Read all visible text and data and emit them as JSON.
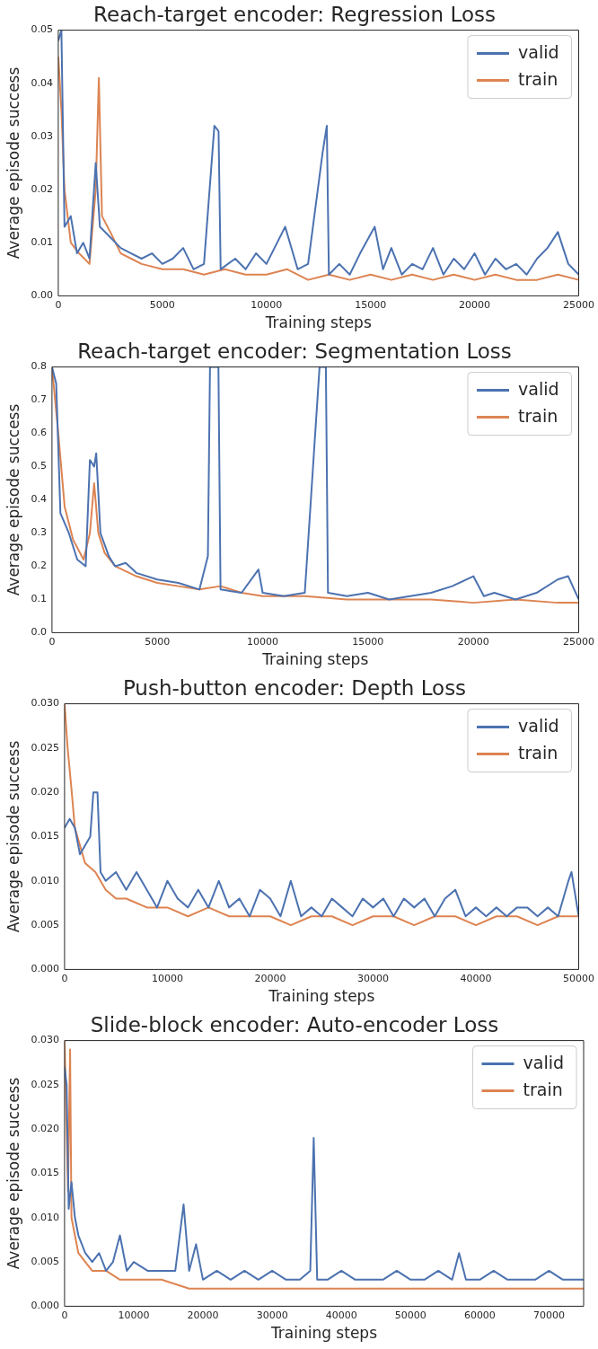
{
  "chart_data": [
    {
      "type": "line",
      "title": "Reach-target encoder: Regression Loss",
      "xlabel": "Training steps",
      "ylabel": "Average episode success",
      "legend": "top right",
      "grid": false,
      "marker": "none",
      "line_style": "solid",
      "xlim": [
        0,
        25000
      ],
      "xticks": [
        0,
        5000,
        10000,
        15000,
        20000,
        25000
      ],
      "ylim": [
        0,
        0.05
      ],
      "yticks": [
        {
          "value": 0,
          "label": "0.00"
        },
        {
          "value": 0.01,
          "label": "0.01"
        },
        {
          "value": 0.02,
          "label": "0.02"
        },
        {
          "value": 0.03,
          "label": "0.03"
        },
        {
          "value": 0.04,
          "label": "0.04"
        },
        {
          "value": 0.05,
          "label": "0.05"
        }
      ],
      "series": [
        {
          "name": "valid",
          "color": "#4c72b0",
          "x": [
            0,
            150,
            300,
            600,
            900,
            1200,
            1500,
            1800,
            2000,
            2500,
            3000,
            3500,
            4000,
            4500,
            5000,
            5500,
            6000,
            6500,
            7000,
            7500,
            7700,
            7800,
            8500,
            9000,
            9500,
            10000,
            10900,
            11500,
            12000,
            12700,
            12900,
            13000,
            13500,
            14000,
            14500,
            15200,
            15600,
            16000,
            16500,
            17000,
            17500,
            18000,
            18500,
            19000,
            19500,
            20000,
            20500,
            21000,
            21500,
            22000,
            22500,
            23000,
            23500,
            24000,
            24500,
            25000
          ],
          "values": [
            0.048,
            0.05,
            0.013,
            0.015,
            0.008,
            0.01,
            0.007,
            0.025,
            0.013,
            0.011,
            0.009,
            0.008,
            0.007,
            0.008,
            0.006,
            0.007,
            0.009,
            0.005,
            0.006,
            0.032,
            0.031,
            0.005,
            0.007,
            0.005,
            0.008,
            0.006,
            0.013,
            0.005,
            0.006,
            0.027,
            0.032,
            0.004,
            0.006,
            0.004,
            0.008,
            0.013,
            0.005,
            0.009,
            0.004,
            0.006,
            0.005,
            0.009,
            0.004,
            0.007,
            0.005,
            0.008,
            0.004,
            0.007,
            0.005,
            0.006,
            0.004,
            0.007,
            0.009,
            0.012,
            0.006,
            0.004
          ]
        },
        {
          "name": "train",
          "color": "#dd8452",
          "x": [
            0,
            150,
            300,
            600,
            1000,
            1500,
            1800,
            1950,
            2100,
            2500,
            3000,
            3500,
            4000,
            5000,
            6000,
            7000,
            8000,
            9000,
            10000,
            11000,
            12000,
            13000,
            14000,
            15000,
            16000,
            17000,
            18000,
            19000,
            20000,
            21000,
            22000,
            23000,
            24000,
            25000
          ],
          "values": [
            0.045,
            0.035,
            0.02,
            0.01,
            0.008,
            0.006,
            0.02,
            0.041,
            0.015,
            0.012,
            0.008,
            0.007,
            0.006,
            0.005,
            0.005,
            0.004,
            0.005,
            0.004,
            0.004,
            0.005,
            0.003,
            0.004,
            0.003,
            0.004,
            0.003,
            0.004,
            0.003,
            0.004,
            0.003,
            0.004,
            0.003,
            0.003,
            0.004,
            0.003
          ]
        }
      ]
    },
    {
      "type": "line",
      "title": "Reach-target encoder: Segmentation Loss",
      "xlabel": "Training steps",
      "ylabel": "Average episode success",
      "legend": "top right",
      "grid": false,
      "marker": "none",
      "line_style": "solid",
      "xlim": [
        0,
        25000
      ],
      "xticks": [
        0,
        5000,
        10000,
        15000,
        20000,
        25000
      ],
      "ylim": [
        0,
        0.8
      ],
      "yticks": [
        {
          "value": 0,
          "label": "0.0"
        },
        0.1,
        0.2,
        0.3,
        0.4,
        0.5,
        0.6,
        0.7,
        0.8
      ],
      "series": [
        {
          "name": "valid",
          "color": "#4c72b0",
          "x": [
            0,
            200,
            400,
            800,
            1200,
            1600,
            1800,
            2000,
            2100,
            2300,
            2700,
            3000,
            3500,
            4000,
            5000,
            6000,
            7000,
            7400,
            7500,
            7900,
            8000,
            9000,
            9800,
            10000,
            11000,
            12000,
            12700,
            13000,
            13100,
            14000,
            15000,
            16000,
            17000,
            18000,
            19000,
            20000,
            20500,
            21000,
            22000,
            23000,
            24000,
            24500,
            25000
          ],
          "values": [
            0.8,
            0.75,
            0.36,
            0.3,
            0.22,
            0.2,
            0.52,
            0.5,
            0.54,
            0.3,
            0.23,
            0.2,
            0.21,
            0.18,
            0.16,
            0.15,
            0.13,
            0.23,
            0.8,
            0.8,
            0.13,
            0.12,
            0.19,
            0.12,
            0.11,
            0.12,
            0.8,
            0.8,
            0.12,
            0.11,
            0.12,
            0.1,
            0.11,
            0.12,
            0.14,
            0.17,
            0.11,
            0.12,
            0.1,
            0.12,
            0.16,
            0.17,
            0.1
          ]
        },
        {
          "name": "train",
          "color": "#dd8452",
          "x": [
            0,
            300,
            600,
            1000,
            1500,
            1800,
            2000,
            2200,
            2500,
            3000,
            4000,
            5000,
            6000,
            7000,
            8000,
            9000,
            10000,
            12000,
            14000,
            16000,
            18000,
            20000,
            22000,
            24000,
            25000
          ],
          "values": [
            0.8,
            0.6,
            0.38,
            0.28,
            0.22,
            0.3,
            0.45,
            0.3,
            0.24,
            0.2,
            0.17,
            0.15,
            0.14,
            0.13,
            0.14,
            0.12,
            0.11,
            0.11,
            0.1,
            0.1,
            0.1,
            0.09,
            0.1,
            0.09,
            0.09
          ]
        }
      ]
    },
    {
      "type": "line",
      "title": "Push-button encoder: Depth Loss",
      "xlabel": "Training steps",
      "ylabel": "Average episode success",
      "legend": "top right",
      "grid": false,
      "marker": "none",
      "line_style": "solid",
      "xlim": [
        0,
        50000
      ],
      "xticks": [
        0,
        10000,
        20000,
        30000,
        40000,
        50000
      ],
      "ylim": [
        0,
        0.03
      ],
      "yticks": [
        {
          "value": 0,
          "label": "0.000"
        },
        0.005,
        {
          "value": 0.01,
          "label": "0.010"
        },
        0.015,
        {
          "value": 0.02,
          "label": "0.020"
        },
        0.025,
        {
          "value": 0.03,
          "label": "0.030"
        }
      ],
      "series": [
        {
          "name": "valid",
          "color": "#4c72b0",
          "x": [
            0,
            500,
            1000,
            1500,
            2000,
            2500,
            2800,
            3200,
            3500,
            4000,
            5000,
            6000,
            7000,
            8000,
            9000,
            10000,
            11000,
            12000,
            13000,
            14000,
            15000,
            16000,
            17000,
            18000,
            19000,
            20000,
            21000,
            22000,
            23000,
            24000,
            25000,
            26000,
            27000,
            28000,
            29000,
            30000,
            31000,
            32000,
            33000,
            34000,
            35000,
            36000,
            37000,
            38000,
            39000,
            40000,
            41000,
            42000,
            43000,
            44000,
            45000,
            46000,
            47000,
            48000,
            49000,
            49300,
            50000
          ],
          "values": [
            0.016,
            0.017,
            0.016,
            0.013,
            0.014,
            0.015,
            0.02,
            0.02,
            0.011,
            0.01,
            0.011,
            0.009,
            0.011,
            0.009,
            0.007,
            0.01,
            0.008,
            0.007,
            0.009,
            0.007,
            0.01,
            0.007,
            0.008,
            0.006,
            0.009,
            0.008,
            0.006,
            0.01,
            0.006,
            0.007,
            0.006,
            0.008,
            0.007,
            0.006,
            0.008,
            0.007,
            0.008,
            0.006,
            0.008,
            0.007,
            0.008,
            0.006,
            0.008,
            0.009,
            0.006,
            0.007,
            0.006,
            0.007,
            0.006,
            0.007,
            0.007,
            0.006,
            0.007,
            0.006,
            0.01,
            0.011,
            0.006
          ]
        },
        {
          "name": "train",
          "color": "#dd8452",
          "x": [
            0,
            300,
            700,
            1000,
            1500,
            2000,
            3000,
            4000,
            5000,
            6000,
            8000,
            10000,
            12000,
            14000,
            16000,
            18000,
            20000,
            22000,
            24000,
            26000,
            28000,
            30000,
            32000,
            34000,
            36000,
            38000,
            40000,
            42000,
            44000,
            46000,
            48000,
            50000
          ],
          "values": [
            0.03,
            0.025,
            0.02,
            0.016,
            0.014,
            0.012,
            0.011,
            0.009,
            0.008,
            0.008,
            0.007,
            0.007,
            0.006,
            0.007,
            0.006,
            0.006,
            0.006,
            0.005,
            0.006,
            0.006,
            0.005,
            0.006,
            0.006,
            0.005,
            0.006,
            0.006,
            0.005,
            0.006,
            0.006,
            0.005,
            0.006,
            0.006
          ]
        }
      ]
    },
    {
      "type": "line",
      "title": "Slide-block encoder: Auto-encoder Loss",
      "xlabel": "Training steps",
      "ylabel": "Average episode success",
      "legend": "top right",
      "grid": false,
      "marker": "none",
      "line_style": "solid",
      "xlim": [
        0,
        75000
      ],
      "xticks": [
        0,
        10000,
        20000,
        30000,
        40000,
        50000,
        60000,
        70000
      ],
      "ylim": [
        0,
        0.03
      ],
      "yticks": [
        {
          "value": 0,
          "label": "0.000"
        },
        0.005,
        {
          "value": 0.01,
          "label": "0.010"
        },
        0.015,
        {
          "value": 0.02,
          "label": "0.020"
        },
        0.025,
        {
          "value": 0.03,
          "label": "0.030"
        }
      ],
      "series": [
        {
          "name": "valid",
          "color": "#4c72b0",
          "x": [
            0,
            300,
            600,
            1000,
            1500,
            2000,
            3000,
            4000,
            5000,
            6000,
            7000,
            8000,
            9000,
            10000,
            12000,
            14000,
            16000,
            17200,
            18000,
            19000,
            20000,
            22000,
            24000,
            26000,
            28000,
            30000,
            32000,
            34000,
            35500,
            36000,
            36500,
            38000,
            40000,
            42000,
            44000,
            46000,
            48000,
            50000,
            52000,
            54000,
            56000,
            57000,
            58000,
            60000,
            62000,
            64000,
            66000,
            68000,
            70000,
            72000,
            74000,
            75000
          ],
          "values": [
            0.027,
            0.025,
            0.011,
            0.014,
            0.01,
            0.008,
            0.006,
            0.005,
            0.006,
            0.004,
            0.005,
            0.008,
            0.004,
            0.005,
            0.004,
            0.004,
            0.004,
            0.0115,
            0.004,
            0.007,
            0.003,
            0.004,
            0.003,
            0.004,
            0.003,
            0.004,
            0.003,
            0.003,
            0.004,
            0.019,
            0.003,
            0.003,
            0.004,
            0.003,
            0.003,
            0.003,
            0.004,
            0.003,
            0.003,
            0.004,
            0.003,
            0.006,
            0.003,
            0.003,
            0.004,
            0.003,
            0.003,
            0.003,
            0.004,
            0.003,
            0.003,
            0.003
          ]
        },
        {
          "name": "train",
          "color": "#dd8452",
          "x": [
            0,
            300,
            500,
            800,
            1000,
            1500,
            2000,
            3000,
            4000,
            6000,
            8000,
            10000,
            14000,
            18000,
            22000,
            26000,
            30000,
            34000,
            38000,
            42000,
            46000,
            50000,
            54000,
            58000,
            62000,
            66000,
            70000,
            75000
          ],
          "values": [
            0.03,
            0.02,
            0.013,
            0.029,
            0.01,
            0.008,
            0.006,
            0.005,
            0.004,
            0.004,
            0.003,
            0.003,
            0.003,
            0.002,
            0.002,
            0.002,
            0.002,
            0.002,
            0.002,
            0.002,
            0.002,
            0.002,
            0.002,
            0.002,
            0.002,
            0.002,
            0.002,
            0.002
          ]
        }
      ]
    }
  ]
}
